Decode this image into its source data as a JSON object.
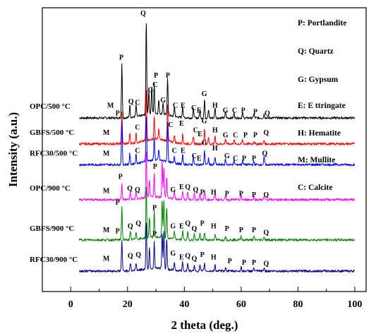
{
  "chart_data": {
    "type": "line",
    "xlabel": "2 theta (deg.)",
    "ylabel": "Intensity (a.u.)",
    "xlim": [
      -10,
      104
    ],
    "xticks": [
      0,
      20,
      40,
      60,
      80,
      100
    ],
    "y_ticks_shown": false,
    "legend_position": "top-right",
    "legend": [
      "P: Portlandite",
      "Q: Quartz",
      "G: Gypsum",
      "E: E ttringate",
      "H: Hematite",
      "M: Mullite",
      "C: Calcite"
    ],
    "series": [
      {
        "name": "OPC/500 °C",
        "color": "#000000",
        "baseline": 6.2,
        "peaks": [
          {
            "x": 18.0,
            "h": 2.1
          },
          {
            "x": 20.8,
            "h": 0.5
          },
          {
            "x": 23.0,
            "h": 0.45
          },
          {
            "x": 26.6,
            "h": 3.65
          },
          {
            "x": 27.5,
            "h": 0.9
          },
          {
            "x": 28.5,
            "h": 1.05
          },
          {
            "x": 29.4,
            "h": 1.15
          },
          {
            "x": 31.0,
            "h": 0.5
          },
          {
            "x": 32.5,
            "h": 0.45
          },
          {
            "x": 34.1,
            "h": 1.45
          },
          {
            "x": 36.5,
            "h": 0.4
          },
          {
            "x": 39.4,
            "h": 0.45
          },
          {
            "x": 43.2,
            "h": 0.35
          },
          {
            "x": 45.5,
            "h": 0.3
          },
          {
            "x": 47.1,
            "h": 0.75
          },
          {
            "x": 48.5,
            "h": 0.3
          },
          {
            "x": 50.8,
            "h": 0.4
          },
          {
            "x": 54.5,
            "h": 0.25
          },
          {
            "x": 57.5,
            "h": 0.2
          },
          {
            "x": 60.5,
            "h": 0.18
          },
          {
            "x": 64.5,
            "h": 0.15
          },
          {
            "x": 68.1,
            "h": 0.15
          }
        ],
        "peak_labels": [
          {
            "x": 14,
            "y": 6.6,
            "text": "M"
          },
          {
            "x": 17.8,
            "y": 8.45,
            "text": "P"
          },
          {
            "x": 21.2,
            "y": 6.75,
            "text": "Q"
          },
          {
            "x": 23.5,
            "y": 6.7,
            "text": "C"
          },
          {
            "x": 25.5,
            "y": 10.15,
            "text": "Q"
          },
          {
            "x": 28.1,
            "y": 7.2,
            "text": "G"
          },
          {
            "x": 29.7,
            "y": 7.4,
            "text": "C"
          },
          {
            "x": 30.0,
            "y": 7.75,
            "text": "P"
          },
          {
            "x": 32.5,
            "y": 6.8,
            "text": "G"
          },
          {
            "x": 34.2,
            "y": 7.75,
            "text": "P"
          },
          {
            "x": 36.8,
            "y": 6.6,
            "text": "C"
          },
          {
            "x": 39.5,
            "y": 6.6,
            "text": "E"
          },
          {
            "x": 43.3,
            "y": 6.5,
            "text": "C"
          },
          {
            "x": 45.2,
            "y": 6.4,
            "text": "E"
          },
          {
            "x": 47.0,
            "y": 7.05,
            "text": "G"
          },
          {
            "x": 50.8,
            "y": 6.6,
            "text": "H"
          },
          {
            "x": 54.5,
            "y": 6.4,
            "text": "G"
          },
          {
            "x": 57.7,
            "y": 6.4,
            "text": "C"
          },
          {
            "x": 60.7,
            "y": 6.4,
            "text": "P"
          },
          {
            "x": 65.0,
            "y": 6.35,
            "text": "P"
          },
          {
            "x": 69.2,
            "y": 6.3,
            "text": "Q"
          }
        ]
      },
      {
        "name": "GBFS/500 °C",
        "color": "#ff0000",
        "baseline": 5.2,
        "peaks": [
          {
            "x": 18.0,
            "h": 1.2
          },
          {
            "x": 20.8,
            "h": 0.4
          },
          {
            "x": 23.0,
            "h": 0.35
          },
          {
            "x": 26.6,
            "h": 2.0
          },
          {
            "x": 29.4,
            "h": 0.9
          },
          {
            "x": 31.0,
            "h": 0.4
          },
          {
            "x": 34.1,
            "h": 1.35
          },
          {
            "x": 36.5,
            "h": 0.3
          },
          {
            "x": 39.4,
            "h": 0.35
          },
          {
            "x": 43.2,
            "h": 0.3
          },
          {
            "x": 47.1,
            "h": 0.6
          },
          {
            "x": 48.5,
            "h": 0.25
          },
          {
            "x": 50.8,
            "h": 0.3
          },
          {
            "x": 54.5,
            "h": 0.2
          },
          {
            "x": 57.5,
            "h": 0.15
          },
          {
            "x": 60.5,
            "h": 0.15
          },
          {
            "x": 64.5,
            "h": 0.12
          },
          {
            "x": 68.1,
            "h": 0.12
          }
        ],
        "peak_labels": [
          {
            "x": 12.5,
            "y": 5.55,
            "text": "M"
          },
          {
            "x": 16.5,
            "y": 6.3,
            "text": "P"
          },
          {
            "x": 23.5,
            "y": 5.75,
            "text": "C"
          },
          {
            "x": 35.2,
            "y": 5.85,
            "text": "C"
          },
          {
            "x": 39.0,
            "y": 5.9,
            "text": "E"
          },
          {
            "x": 44.0,
            "y": 5.65,
            "text": "C"
          },
          {
            "x": 45.5,
            "y": 5.5,
            "text": "E"
          },
          {
            "x": 47.0,
            "y": 6.0,
            "text": "G"
          },
          {
            "x": 50.8,
            "y": 5.65,
            "text": "H"
          },
          {
            "x": 54.5,
            "y": 5.45,
            "text": "G"
          },
          {
            "x": 58.0,
            "y": 5.45,
            "text": "C"
          },
          {
            "x": 61.5,
            "y": 5.45,
            "text": "P"
          },
          {
            "x": 65.0,
            "y": 5.45,
            "text": "P"
          },
          {
            "x": 68.8,
            "y": 5.55,
            "text": "Q"
          }
        ]
      },
      {
        "name": "RFC30/500 °C",
        "color": "#0000ff",
        "baseline": 4.4,
        "peaks": [
          {
            "x": 18.0,
            "h": 1.7
          },
          {
            "x": 20.8,
            "h": 0.4
          },
          {
            "x": 23.0,
            "h": 0.35
          },
          {
            "x": 26.6,
            "h": 1.75
          },
          {
            "x": 29.4,
            "h": 0.9
          },
          {
            "x": 31.0,
            "h": 0.4
          },
          {
            "x": 34.1,
            "h": 1.55
          },
          {
            "x": 36.5,
            "h": 0.3
          },
          {
            "x": 39.4,
            "h": 0.35
          },
          {
            "x": 43.2,
            "h": 0.3
          },
          {
            "x": 47.1,
            "h": 0.55
          },
          {
            "x": 48.5,
            "h": 0.25
          },
          {
            "x": 50.8,
            "h": 0.3
          },
          {
            "x": 54.5,
            "h": 0.2
          },
          {
            "x": 57.5,
            "h": 0.15
          },
          {
            "x": 60.5,
            "h": 0.15
          },
          {
            "x": 64.5,
            "h": 0.12
          },
          {
            "x": 68.1,
            "h": 0.3
          }
        ],
        "peak_labels": [
          {
            "x": 12.5,
            "y": 4.75,
            "text": "M"
          },
          {
            "x": 23.5,
            "y": 4.85,
            "text": "C"
          },
          {
            "x": 36.5,
            "y": 4.85,
            "text": "C"
          },
          {
            "x": 39.5,
            "y": 4.85,
            "text": "E"
          },
          {
            "x": 43.5,
            "y": 4.65,
            "text": "C"
          },
          {
            "x": 45.2,
            "y": 4.55,
            "text": "E"
          },
          {
            "x": 47.0,
            "y": 5.15,
            "text": "G"
          },
          {
            "x": 50.8,
            "y": 4.95,
            "text": "H"
          },
          {
            "x": 55.0,
            "y": 4.65,
            "text": "G"
          },
          {
            "x": 58.0,
            "y": 4.55,
            "text": "C"
          },
          {
            "x": 61.0,
            "y": 4.55,
            "text": "P"
          },
          {
            "x": 64.5,
            "y": 4.55,
            "text": "P"
          },
          {
            "x": 68.3,
            "y": 4.75,
            "text": "Q"
          }
        ]
      },
      {
        "name": "OPC/900 °C",
        "color": "#ff00ff",
        "baseline": 3.05,
        "peaks": [
          {
            "x": 18.0,
            "h": 0.6
          },
          {
            "x": 21.0,
            "h": 0.3
          },
          {
            "x": 23.0,
            "h": 0.3
          },
          {
            "x": 26.6,
            "h": 1.8
          },
          {
            "x": 27.7,
            "h": 0.7
          },
          {
            "x": 29.4,
            "h": 0.9
          },
          {
            "x": 32.2,
            "h": 1.4
          },
          {
            "x": 32.8,
            "h": 1.2
          },
          {
            "x": 33.8,
            "h": 0.8
          },
          {
            "x": 36.5,
            "h": 0.3
          },
          {
            "x": 39.4,
            "h": 0.35
          },
          {
            "x": 41.2,
            "h": 0.3
          },
          {
            "x": 43.5,
            "h": 0.25
          },
          {
            "x": 45.5,
            "h": 0.25
          },
          {
            "x": 47.1,
            "h": 0.35
          },
          {
            "x": 50.8,
            "h": 0.25
          },
          {
            "x": 54.5,
            "h": 0.15
          },
          {
            "x": 60.0,
            "h": 0.15
          },
          {
            "x": 64.5,
            "h": 0.12
          },
          {
            "x": 68.1,
            "h": 0.12
          }
        ],
        "peak_labels": [
          {
            "x": 12.5,
            "y": 3.3,
            "text": "M"
          },
          {
            "x": 17.5,
            "y": 3.85,
            "text": "P"
          },
          {
            "x": 20.8,
            "y": 3.4,
            "text": "Q"
          },
          {
            "x": 23.5,
            "y": 3.35,
            "text": "Q"
          },
          {
            "x": 29.7,
            "y": 4.25,
            "text": "P"
          },
          {
            "x": 36.0,
            "y": 3.35,
            "text": "G"
          },
          {
            "x": 39.0,
            "y": 3.45,
            "text": "E"
          },
          {
            "x": 41.2,
            "y": 3.45,
            "text": "Q"
          },
          {
            "x": 44.0,
            "y": 3.35,
            "text": "Q"
          },
          {
            "x": 46.3,
            "y": 3.25,
            "text": "P"
          },
          {
            "x": 50.3,
            "y": 3.25,
            "text": "H"
          },
          {
            "x": 55.0,
            "y": 3.2,
            "text": "P"
          },
          {
            "x": 60.0,
            "y": 3.2,
            "text": "P"
          },
          {
            "x": 64.5,
            "y": 3.15,
            "text": "P"
          },
          {
            "x": 68.8,
            "y": 3.15,
            "text": "Q"
          }
        ]
      },
      {
        "name": "GBFS/900 °C",
        "color": "#008000",
        "baseline": 1.5,
        "peaks": [
          {
            "x": 18.0,
            "h": 1.3
          },
          {
            "x": 21.0,
            "h": 0.3
          },
          {
            "x": 23.0,
            "h": 0.3
          },
          {
            "x": 26.6,
            "h": 2.0
          },
          {
            "x": 27.7,
            "h": 0.8
          },
          {
            "x": 29.4,
            "h": 1.0
          },
          {
            "x": 32.2,
            "h": 1.4
          },
          {
            "x": 32.8,
            "h": 1.5
          },
          {
            "x": 33.8,
            "h": 1.2
          },
          {
            "x": 36.5,
            "h": 0.3
          },
          {
            "x": 39.4,
            "h": 0.35
          },
          {
            "x": 41.2,
            "h": 0.3
          },
          {
            "x": 43.5,
            "h": 0.25
          },
          {
            "x": 45.5,
            "h": 0.25
          },
          {
            "x": 47.1,
            "h": 0.3
          },
          {
            "x": 50.8,
            "h": 0.25
          },
          {
            "x": 54.5,
            "h": 0.15
          },
          {
            "x": 60.0,
            "h": 0.15
          },
          {
            "x": 64.5,
            "h": 0.12
          },
          {
            "x": 68.1,
            "h": 0.12
          }
        ],
        "peak_labels": [
          {
            "x": 12.5,
            "y": 1.8,
            "text": "M"
          },
          {
            "x": 16.5,
            "y": 2.85,
            "text": "P"
          },
          {
            "x": 21.0,
            "y": 1.95,
            "text": "Q"
          },
          {
            "x": 23.8,
            "y": 2.05,
            "text": "Q"
          },
          {
            "x": 29.5,
            "y": 2.65,
            "text": "P"
          },
          {
            "x": 36.0,
            "y": 1.95,
            "text": "G"
          },
          {
            "x": 39.0,
            "y": 1.95,
            "text": "E"
          },
          {
            "x": 41.2,
            "y": 2.05,
            "text": "Q"
          },
          {
            "x": 43.5,
            "y": 1.85,
            "text": "Q"
          },
          {
            "x": 46.3,
            "y": 2.05,
            "text": "P"
          },
          {
            "x": 50.3,
            "y": 1.95,
            "text": "H"
          },
          {
            "x": 55.0,
            "y": 1.85,
            "text": "P"
          },
          {
            "x": 60.0,
            "y": 1.8,
            "text": "P"
          },
          {
            "x": 64.5,
            "y": 1.8,
            "text": "P"
          },
          {
            "x": 68.8,
            "y": 1.7,
            "text": "Q"
          }
        ]
      },
      {
        "name": "RFC30/900 °C",
        "color": "#00008b",
        "baseline": 0.3,
        "peaks": [
          {
            "x": 18.0,
            "h": 1.2
          },
          {
            "x": 21.0,
            "h": 0.3
          },
          {
            "x": 23.0,
            "h": 0.3
          },
          {
            "x": 26.6,
            "h": 1.8
          },
          {
            "x": 27.7,
            "h": 0.8
          },
          {
            "x": 29.4,
            "h": 1.0
          },
          {
            "x": 32.2,
            "h": 1.4
          },
          {
            "x": 32.8,
            "h": 1.5
          },
          {
            "x": 33.8,
            "h": 1.2
          },
          {
            "x": 36.5,
            "h": 0.3
          },
          {
            "x": 39.4,
            "h": 0.35
          },
          {
            "x": 41.2,
            "h": 0.3
          },
          {
            "x": 43.5,
            "h": 0.25
          },
          {
            "x": 45.5,
            "h": 0.25
          },
          {
            "x": 47.1,
            "h": 0.3
          },
          {
            "x": 50.8,
            "h": 0.25
          },
          {
            "x": 54.5,
            "h": 0.15
          },
          {
            "x": 60.0,
            "h": 0.15
          },
          {
            "x": 64.5,
            "h": 0.12
          },
          {
            "x": 68.1,
            "h": 0.12
          }
        ],
        "peak_labels": [
          {
            "x": 12.5,
            "y": 0.7,
            "text": "M"
          },
          {
            "x": 16.5,
            "y": 1.75,
            "text": "P"
          },
          {
            "x": 21.0,
            "y": 0.8,
            "text": "Q"
          },
          {
            "x": 23.8,
            "y": 0.85,
            "text": "Q"
          },
          {
            "x": 29.5,
            "y": 1.65,
            "text": "P"
          },
          {
            "x": 36.0,
            "y": 0.9,
            "text": "G"
          },
          {
            "x": 39.0,
            "y": 0.75,
            "text": "E"
          },
          {
            "x": 41.2,
            "y": 0.8,
            "text": "Q"
          },
          {
            "x": 43.5,
            "y": 0.7,
            "text": "Q"
          },
          {
            "x": 46.3,
            "y": 0.85,
            "text": "P"
          },
          {
            "x": 50.3,
            "y": 0.75,
            "text": "H"
          },
          {
            "x": 56.0,
            "y": 0.6,
            "text": "P"
          },
          {
            "x": 61.0,
            "y": 0.55,
            "text": "P"
          },
          {
            "x": 64.5,
            "y": 0.55,
            "text": "P"
          },
          {
            "x": 68.8,
            "y": 0.5,
            "text": "Q"
          }
        ]
      }
    ]
  }
}
